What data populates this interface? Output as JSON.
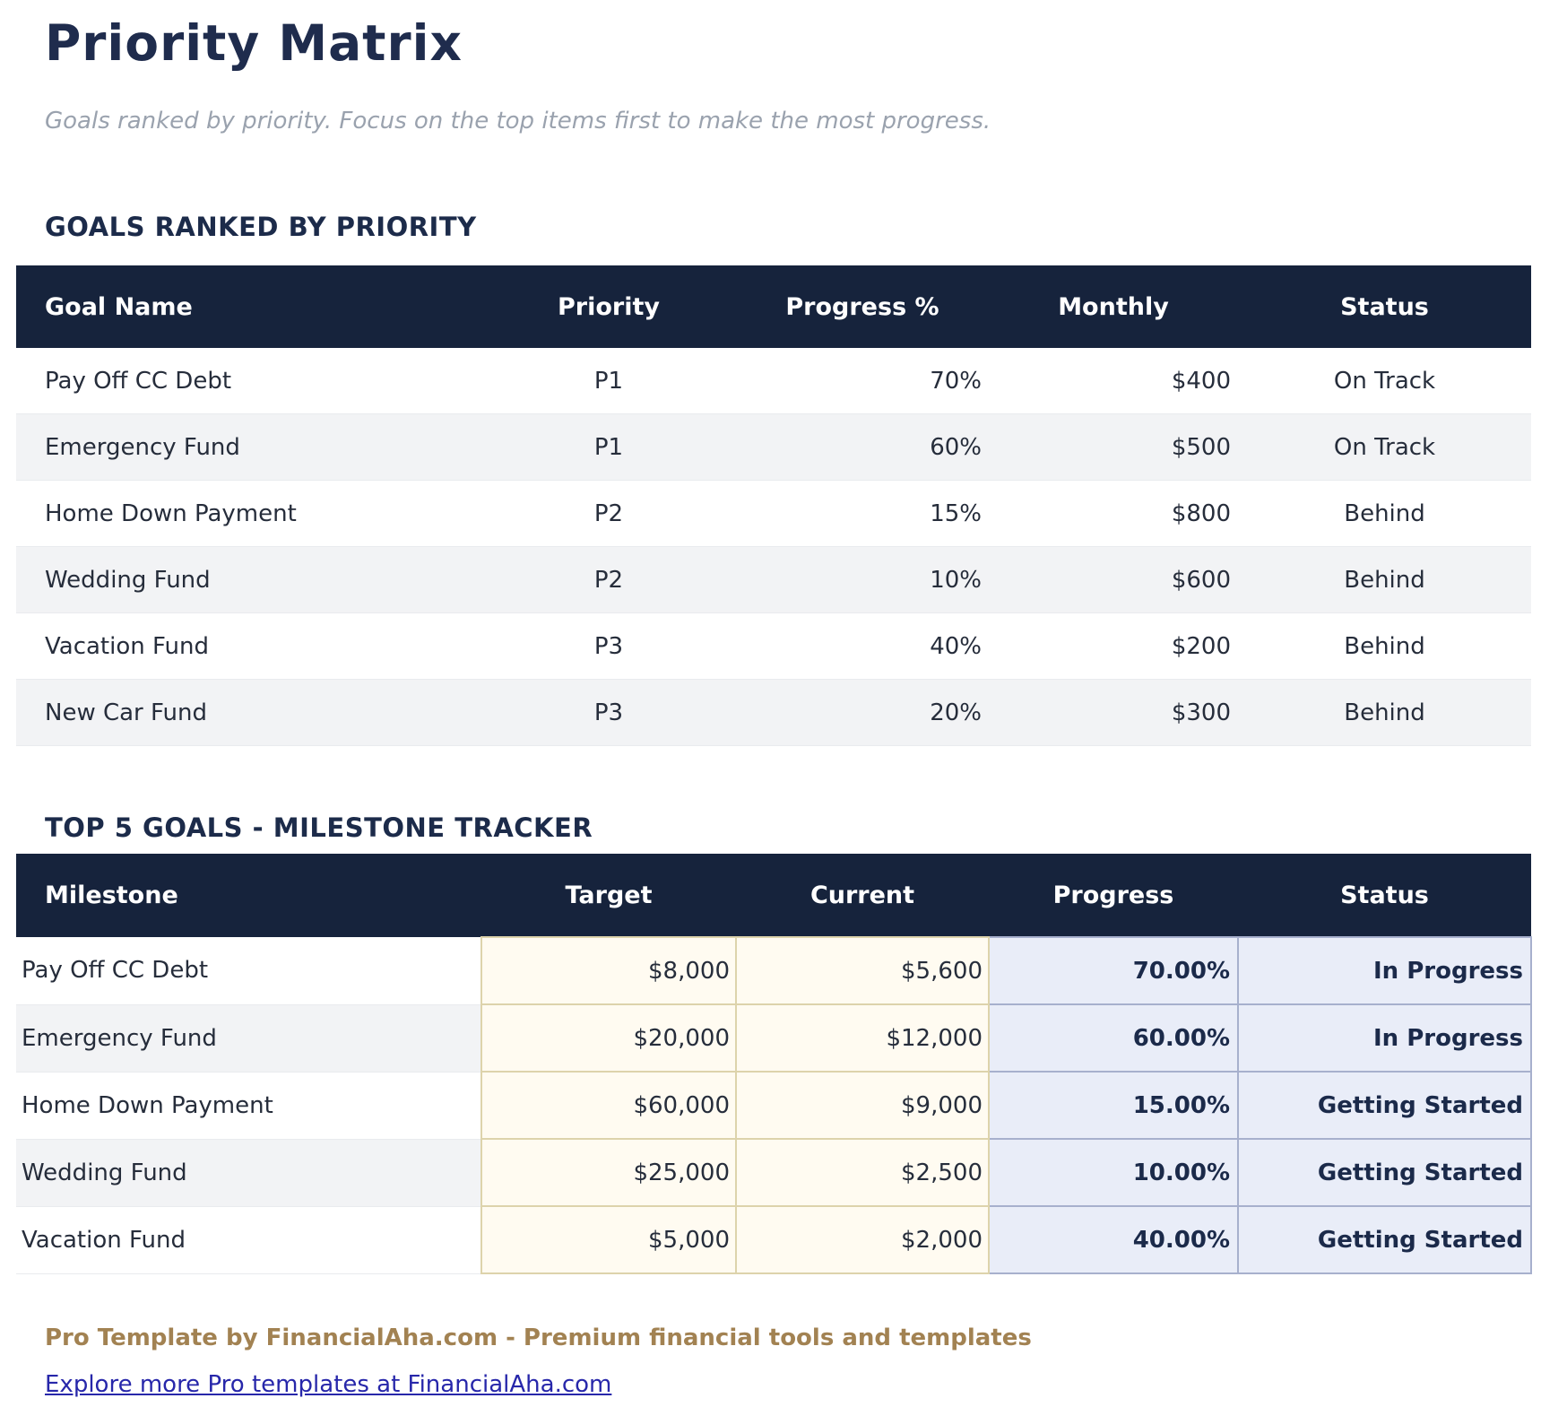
{
  "page": {
    "title": "Priority Matrix",
    "subtitle": "Goals ranked by priority. Focus on the top items first to make the most progress."
  },
  "goals_table": {
    "heading": "GOALS RANKED BY PRIORITY",
    "columns": {
      "goal": "Goal Name",
      "priority": "Priority",
      "progress": "Progress %",
      "monthly": "Monthly",
      "status": "Status"
    },
    "rows": [
      {
        "goal": "Pay Off CC Debt",
        "priority": "P1",
        "progress": "70%",
        "monthly": "$400",
        "status": "On Track"
      },
      {
        "goal": "Emergency Fund",
        "priority": "P1",
        "progress": "60%",
        "monthly": "$500",
        "status": "On Track"
      },
      {
        "goal": "Home Down Payment",
        "priority": "P2",
        "progress": "15%",
        "monthly": "$800",
        "status": "Behind"
      },
      {
        "goal": "Wedding Fund",
        "priority": "P2",
        "progress": "10%",
        "monthly": "$600",
        "status": "Behind"
      },
      {
        "goal": "Vacation Fund",
        "priority": "P3",
        "progress": "40%",
        "monthly": "$200",
        "status": "Behind"
      },
      {
        "goal": "New Car Fund",
        "priority": "P3",
        "progress": "20%",
        "monthly": "$300",
        "status": "Behind"
      }
    ]
  },
  "milestone_table": {
    "heading": "TOP 5 GOALS - MILESTONE TRACKER",
    "columns": {
      "milestone": "Milestone",
      "target": "Target",
      "current": "Current",
      "progress": "Progress",
      "status": "Status"
    },
    "rows": [
      {
        "milestone": "Pay Off CC Debt",
        "target": "$8,000",
        "current": "$5,600",
        "progress": "70.00%",
        "status": "In Progress"
      },
      {
        "milestone": "Emergency Fund",
        "target": "$20,000",
        "current": "$12,000",
        "progress": "60.00%",
        "status": "In Progress"
      },
      {
        "milestone": "Home Down Payment",
        "target": "$60,000",
        "current": "$9,000",
        "progress": "15.00%",
        "status": "Getting Started"
      },
      {
        "milestone": "Wedding Fund",
        "target": "$25,000",
        "current": "$2,500",
        "progress": "10.00%",
        "status": "Getting Started"
      },
      {
        "milestone": "Vacation Fund",
        "target": "$5,000",
        "current": "$2,000",
        "progress": "40.00%",
        "status": "Getting Started"
      }
    ]
  },
  "footer": {
    "promo": "Pro Template by FinancialAha.com - Premium financial tools and templates",
    "link": "Explore more Pro templates at FinancialAha.com"
  },
  "colors": {
    "header_bg": "#16233c",
    "heading_text": "#1c2b4a",
    "row_alt_bg": "#f2f3f5",
    "target_current_bg": "#fffbf1",
    "target_current_border": "#ddd3ab",
    "progress_status_bg": "#e9edf8",
    "progress_status_border": "#a7b0cd",
    "subtitle_text": "#9aa2ae",
    "promo_text": "#a28252",
    "link_text": "#2727aa"
  }
}
